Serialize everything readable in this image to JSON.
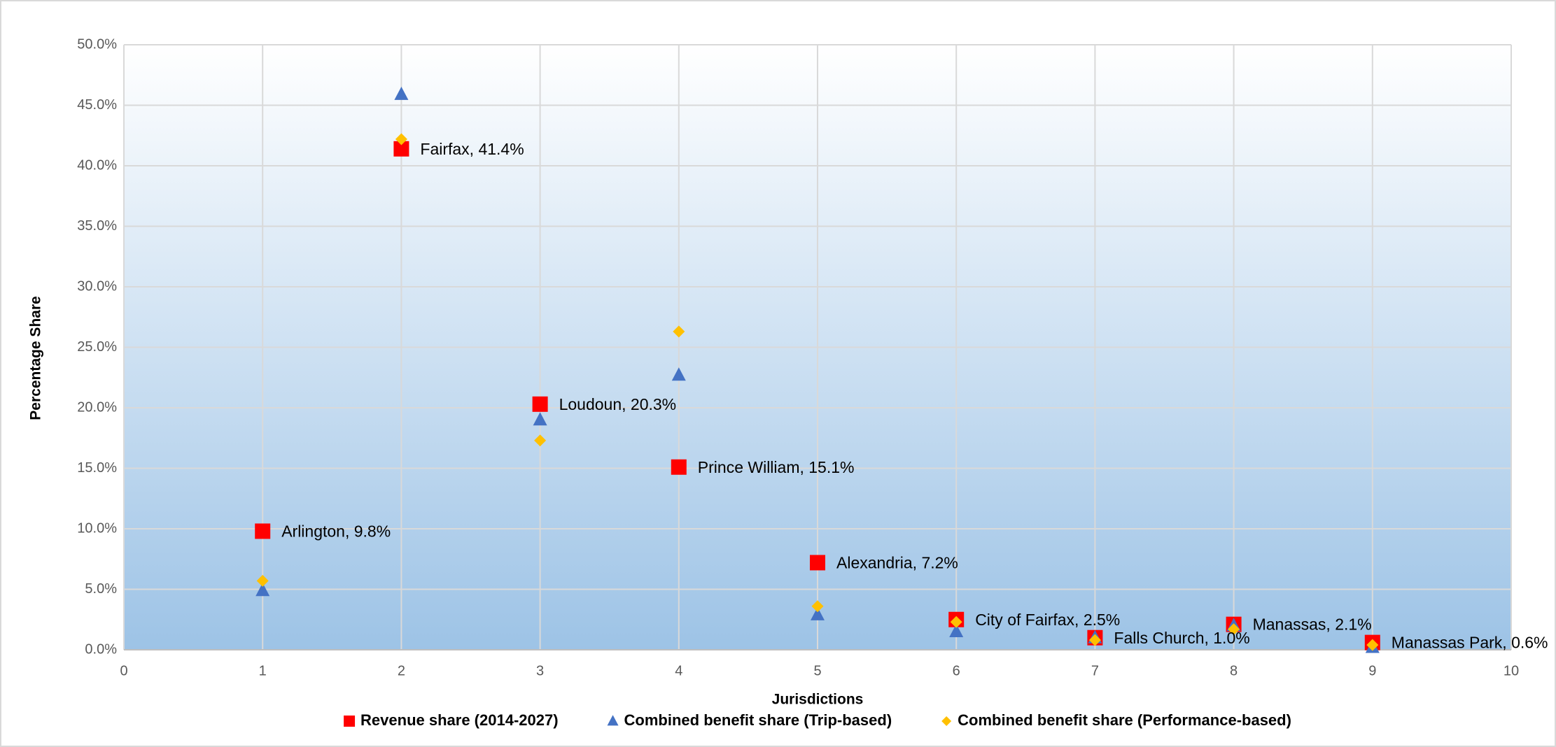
{
  "chart_data": {
    "type": "scatter",
    "x_label": "Jurisdictions",
    "y_label": "Percentage Share",
    "xlim": [
      0,
      10
    ],
    "xticks": [
      0,
      1,
      2,
      3,
      4,
      5,
      6,
      7,
      8,
      9,
      10
    ],
    "ylim": [
      0,
      50
    ],
    "yticks": [
      {
        "value": 0,
        "label": "0.0%"
      },
      {
        "value": 5,
        "label": "5.0%"
      },
      {
        "value": 10,
        "label": "10.0%"
      },
      {
        "value": 15,
        "label": "15.0%"
      },
      {
        "value": 20,
        "label": "20.0%"
      },
      {
        "value": 25,
        "label": "25.0%"
      },
      {
        "value": 30,
        "label": "30.0%"
      },
      {
        "value": 35,
        "label": "35.0%"
      },
      {
        "value": 40,
        "label": "40.0%"
      },
      {
        "value": 45,
        "label": "45.0%"
      },
      {
        "value": 50,
        "label": "50.0%"
      }
    ],
    "grid": true,
    "legend": "bottom",
    "series": [
      {
        "name": "Revenue share (2014-2027)",
        "color": "#ff0000",
        "marker": "square",
        "x": [
          1,
          2,
          3,
          4,
          5,
          6,
          7,
          8,
          9
        ],
        "values": [
          9.8,
          41.4,
          20.3,
          15.1,
          7.2,
          2.5,
          1.0,
          2.1,
          0.6
        ],
        "value_labels": [
          "Arlington, 9.8%",
          "Fairfax, 41.4%",
          "Loudoun, 20.3%",
          "Prince William, 15.1%",
          "Alexandria, 7.2%",
          "City of Fairfax, 2.5%",
          "Falls Church, 1.0%",
          "Manassas, 2.1%",
          "Manassas Park, 0.6%"
        ]
      },
      {
        "name": "Combined benefit share (Trip-based)",
        "color": "#4472c4",
        "marker": "triangle",
        "x": [
          1,
          2,
          3,
          4,
          5,
          6,
          7,
          8,
          9
        ],
        "values": [
          4.9,
          45.9,
          19.0,
          22.7,
          2.9,
          1.5,
          1.0,
          2.0,
          0.2
        ]
      },
      {
        "name": "Combined benefit share (Performance-based)",
        "color": "#ffc000",
        "marker": "diamond",
        "x": [
          1,
          2,
          3,
          4,
          5,
          6,
          7,
          8,
          9
        ],
        "values": [
          5.7,
          42.2,
          17.3,
          26.3,
          3.6,
          2.3,
          0.8,
          1.7,
          0.4
        ]
      }
    ]
  }
}
